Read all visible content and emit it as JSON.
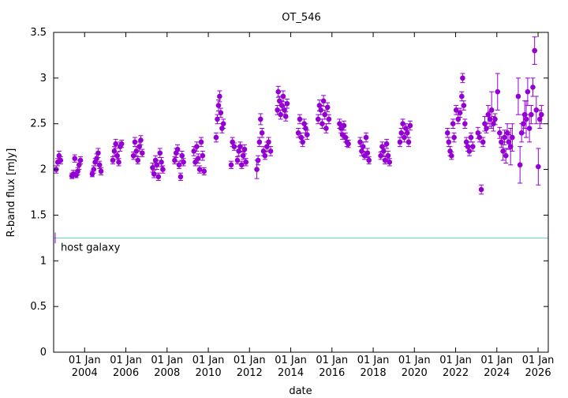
{
  "chart_data": {
    "type": "scatter",
    "title": "OT_546",
    "xlabel": "date",
    "ylabel": "R-band flux [mJy]",
    "xlim": [
      "2002-07-01",
      "2026-07-01"
    ],
    "ylim": [
      0,
      3.5
    ],
    "grid": false,
    "y_ticks": [
      {
        "value": 0,
        "label": "0"
      },
      {
        "value": 0.5,
        "label": "0.5"
      },
      {
        "value": 1,
        "label": "1"
      },
      {
        "value": 1.5,
        "label": "1.5"
      },
      {
        "value": 2,
        "label": "2"
      },
      {
        "value": 2.5,
        "label": "2.5"
      },
      {
        "value": 3,
        "label": "3"
      },
      {
        "value": 3.5,
        "label": "3.5"
      }
    ],
    "x_ticks": [
      {
        "date": "2004-01-01",
        "line1": "01 Jan",
        "line2": "2004"
      },
      {
        "date": "2006-01-01",
        "line1": "01 Jan",
        "line2": "2006"
      },
      {
        "date": "2008-01-01",
        "line1": "01 Jan",
        "line2": "2008"
      },
      {
        "date": "2010-01-01",
        "line1": "01 Jan",
        "line2": "2010"
      },
      {
        "date": "2012-01-01",
        "line1": "01 Jan",
        "line2": "2012"
      },
      {
        "date": "2014-01-01",
        "line1": "01 Jan",
        "line2": "2014"
      },
      {
        "date": "2016-01-01",
        "line1": "01 Jan",
        "line2": "2016"
      },
      {
        "date": "2018-01-01",
        "line1": "01 Jan",
        "line2": "2018"
      },
      {
        "date": "2020-01-01",
        "line1": "01 Jan",
        "line2": "2020"
      },
      {
        "date": "2022-01-01",
        "line1": "01 Jan",
        "line2": "2022"
      },
      {
        "date": "2024-01-01",
        "line1": "01 Jan",
        "line2": "2024"
      },
      {
        "date": "2026-01-01",
        "line1": "01 Jan",
        "line2": "2026"
      }
    ],
    "reference_line": {
      "label": "host galaxy",
      "value": 1.25,
      "color": "#7fcfd0",
      "error": 0.06
    },
    "series": [
      {
        "color": "#9400d3",
        "columns": [
          "date",
          "flux",
          "error"
        ],
        "points": [
          [
            "2002-08-15",
            2.0,
            0.04
          ],
          [
            "2002-09-10",
            2.08,
            0.04
          ],
          [
            "2002-10-05",
            2.15,
            0.05
          ],
          [
            "2002-11-01",
            2.1,
            0.04
          ],
          [
            "2003-05-20",
            1.93,
            0.03
          ],
          [
            "2003-06-15",
            1.95,
            0.04
          ],
          [
            "2003-07-10",
            2.12,
            0.04
          ],
          [
            "2003-08-05",
            1.94,
            0.03
          ],
          [
            "2003-09-01",
            1.98,
            0.04
          ],
          [
            "2003-09-25",
            2.05,
            0.05
          ],
          [
            "2003-10-20",
            2.1,
            0.04
          ],
          [
            "2004-05-15",
            1.95,
            0.03
          ],
          [
            "2004-06-10",
            2.0,
            0.04
          ],
          [
            "2004-07-05",
            2.08,
            0.04
          ],
          [
            "2004-08-01",
            2.12,
            0.05
          ],
          [
            "2004-08-28",
            2.18,
            0.05
          ],
          [
            "2004-09-22",
            2.05,
            0.04
          ],
          [
            "2004-10-18",
            1.98,
            0.04
          ],
          [
            "2005-05-15",
            2.1,
            0.04
          ],
          [
            "2005-06-10",
            2.2,
            0.05
          ],
          [
            "2005-07-05",
            2.28,
            0.05
          ],
          [
            "2005-08-01",
            2.15,
            0.04
          ],
          [
            "2005-08-28",
            2.08,
            0.04
          ],
          [
            "2005-09-22",
            2.25,
            0.05
          ],
          [
            "2005-10-18",
            2.28,
            0.04
          ],
          [
            "2006-05-15",
            2.15,
            0.04
          ],
          [
            "2006-06-10",
            2.3,
            0.05
          ],
          [
            "2006-07-05",
            2.2,
            0.05
          ],
          [
            "2006-08-01",
            2.1,
            0.04
          ],
          [
            "2006-08-28",
            2.25,
            0.05
          ],
          [
            "2006-09-22",
            2.32,
            0.05
          ],
          [
            "2006-10-18",
            2.18,
            0.04
          ],
          [
            "2007-04-20",
            2.02,
            0.05
          ],
          [
            "2007-05-15",
            1.95,
            0.04
          ],
          [
            "2007-06-10",
            2.1,
            0.05
          ],
          [
            "2007-07-05",
            2.05,
            0.05
          ],
          [
            "2007-08-01",
            1.92,
            0.04
          ],
          [
            "2007-08-28",
            2.18,
            0.05
          ],
          [
            "2007-09-22",
            2.08,
            0.05
          ],
          [
            "2007-10-18",
            2.0,
            0.04
          ],
          [
            "2008-05-15",
            2.1,
            0.04
          ],
          [
            "2008-06-10",
            2.18,
            0.05
          ],
          [
            "2008-07-05",
            2.22,
            0.05
          ],
          [
            "2008-08-01",
            2.05,
            0.04
          ],
          [
            "2008-08-28",
            1.92,
            0.04
          ],
          [
            "2008-09-22",
            2.15,
            0.05
          ],
          [
            "2008-10-18",
            2.08,
            0.04
          ],
          [
            "2009-04-20",
            2.2,
            0.05
          ],
          [
            "2009-05-15",
            2.08,
            0.04
          ],
          [
            "2009-06-10",
            2.25,
            0.05
          ],
          [
            "2009-07-05",
            2.12,
            0.05
          ],
          [
            "2009-08-01",
            2.0,
            0.04
          ],
          [
            "2009-08-28",
            2.3,
            0.05
          ],
          [
            "2009-09-22",
            2.15,
            0.05
          ],
          [
            "2009-10-18",
            1.98,
            0.04
          ],
          [
            "2010-05-20",
            2.35,
            0.05
          ],
          [
            "2010-06-10",
            2.55,
            0.05
          ],
          [
            "2010-07-01",
            2.7,
            0.06
          ],
          [
            "2010-07-20",
            2.8,
            0.06
          ],
          [
            "2010-08-10",
            2.62,
            0.05
          ],
          [
            "2010-09-01",
            2.45,
            0.05
          ],
          [
            "2010-09-25",
            2.5,
            0.05
          ],
          [
            "2011-02-10",
            2.05,
            0.04
          ],
          [
            "2011-03-05",
            2.3,
            0.05
          ],
          [
            "2011-04-05",
            2.25,
            0.04
          ],
          [
            "2011-06-01",
            2.1,
            0.04
          ],
          [
            "2011-06-25",
            2.2,
            0.05
          ],
          [
            "2011-07-20",
            2.25,
            0.05
          ],
          [
            "2011-08-15",
            2.05,
            0.04
          ],
          [
            "2011-09-10",
            2.15,
            0.04
          ],
          [
            "2011-10-05",
            2.22,
            0.05
          ],
          [
            "2011-10-30",
            2.08,
            0.04
          ],
          [
            "2012-05-10",
            2.0,
            0.1
          ],
          [
            "2012-06-01",
            2.1,
            0.05
          ],
          [
            "2012-06-25",
            2.3,
            0.05
          ],
          [
            "2012-07-15",
            2.55,
            0.06
          ],
          [
            "2012-08-10",
            2.4,
            0.05
          ],
          [
            "2012-09-05",
            2.2,
            0.05
          ],
          [
            "2012-10-01",
            2.15,
            0.04
          ],
          [
            "2012-11-05",
            2.25,
            0.05
          ],
          [
            "2012-12-05",
            2.3,
            0.05
          ],
          [
            "2013-01-10",
            2.2,
            0.05
          ],
          [
            "2013-05-10",
            2.65,
            0.05
          ],
          [
            "2013-05-25",
            2.85,
            0.06
          ],
          [
            "2013-06-15",
            2.75,
            0.05
          ],
          [
            "2013-07-05",
            2.6,
            0.05
          ],
          [
            "2013-07-28",
            2.7,
            0.05
          ],
          [
            "2013-08-20",
            2.8,
            0.06
          ],
          [
            "2013-09-12",
            2.65,
            0.05
          ],
          [
            "2013-10-05",
            2.58,
            0.05
          ],
          [
            "2013-10-28",
            2.72,
            0.05
          ],
          [
            "2014-05-15",
            2.4,
            0.05
          ],
          [
            "2014-06-10",
            2.55,
            0.05
          ],
          [
            "2014-07-05",
            2.35,
            0.05
          ],
          [
            "2014-08-01",
            2.3,
            0.05
          ],
          [
            "2014-08-28",
            2.5,
            0.05
          ],
          [
            "2014-09-22",
            2.45,
            0.05
          ],
          [
            "2014-10-18",
            2.38,
            0.05
          ],
          [
            "2015-05-01",
            2.55,
            0.05
          ],
          [
            "2015-05-25",
            2.7,
            0.06
          ],
          [
            "2015-06-18",
            2.65,
            0.05
          ],
          [
            "2015-07-12",
            2.5,
            0.05
          ],
          [
            "2015-08-05",
            2.75,
            0.06
          ],
          [
            "2015-08-28",
            2.6,
            0.05
          ],
          [
            "2015-09-20",
            2.45,
            0.05
          ],
          [
            "2015-10-15",
            2.68,
            0.05
          ],
          [
            "2015-11-08",
            2.55,
            0.05
          ],
          [
            "2016-05-15",
            2.5,
            0.05
          ],
          [
            "2016-06-10",
            2.45,
            0.05
          ],
          [
            "2016-07-05",
            2.38,
            0.05
          ],
          [
            "2016-08-01",
            2.48,
            0.05
          ],
          [
            "2016-08-28",
            2.35,
            0.05
          ],
          [
            "2016-09-22",
            2.3,
            0.05
          ],
          [
            "2016-10-18",
            2.28,
            0.04
          ],
          [
            "2017-05-15",
            2.3,
            0.05
          ],
          [
            "2017-06-10",
            2.2,
            0.05
          ],
          [
            "2017-07-05",
            2.25,
            0.05
          ],
          [
            "2017-08-01",
            2.15,
            0.04
          ],
          [
            "2017-08-28",
            2.35,
            0.05
          ],
          [
            "2017-09-22",
            2.18,
            0.05
          ],
          [
            "2017-10-18",
            2.1,
            0.04
          ],
          [
            "2018-05-15",
            2.15,
            0.04
          ],
          [
            "2018-06-10",
            2.25,
            0.05
          ],
          [
            "2018-07-05",
            2.2,
            0.05
          ],
          [
            "2018-08-01",
            2.1,
            0.04
          ],
          [
            "2018-08-28",
            2.28,
            0.05
          ],
          [
            "2018-09-22",
            2.15,
            0.05
          ],
          [
            "2018-10-18",
            2.08,
            0.04
          ],
          [
            "2019-04-20",
            2.3,
            0.05
          ],
          [
            "2019-05-15",
            2.4,
            0.05
          ],
          [
            "2019-06-10",
            2.5,
            0.05
          ],
          [
            "2019-07-05",
            2.35,
            0.05
          ],
          [
            "2019-08-01",
            2.45,
            0.05
          ],
          [
            "2019-08-28",
            2.4,
            0.05
          ],
          [
            "2019-09-22",
            2.3,
            0.05
          ],
          [
            "2019-10-18",
            2.48,
            0.05
          ],
          [
            "2021-08-10",
            2.4,
            0.05
          ],
          [
            "2021-09-01",
            2.3,
            0.05
          ],
          [
            "2021-09-25",
            2.2,
            0.05
          ],
          [
            "2021-10-20",
            2.15,
            0.04
          ],
          [
            "2021-11-15",
            2.5,
            0.05
          ],
          [
            "2021-12-05",
            2.35,
            0.05
          ],
          [
            "2022-01-10",
            2.65,
            0.05
          ],
          [
            "2022-02-15",
            2.55,
            0.05
          ],
          [
            "2022-03-20",
            2.62,
            0.05
          ],
          [
            "2022-04-20",
            2.8,
            0.05
          ],
          [
            "2022-05-05",
            3.0,
            0.05
          ],
          [
            "2022-05-25",
            2.7,
            0.05
          ],
          [
            "2022-06-15",
            2.5,
            0.05
          ],
          [
            "2022-07-10",
            2.3,
            0.05
          ],
          [
            "2022-08-05",
            2.25,
            0.05
          ],
          [
            "2022-09-01",
            2.2,
            0.05
          ],
          [
            "2022-10-01",
            2.35,
            0.05
          ],
          [
            "2022-11-01",
            2.25,
            0.05
          ],
          [
            "2023-02-01",
            2.4,
            0.06
          ],
          [
            "2023-03-01",
            2.35,
            0.05
          ],
          [
            "2023-04-01",
            1.78,
            0.05
          ],
          [
            "2023-05-01",
            2.3,
            0.05
          ],
          [
            "2023-06-01",
            2.5,
            0.08
          ],
          [
            "2023-07-01",
            2.45,
            0.05
          ],
          [
            "2023-08-01",
            2.6,
            0.1
          ],
          [
            "2023-09-01",
            2.55,
            0.08
          ],
          [
            "2023-10-01",
            2.65,
            0.2
          ],
          [
            "2023-11-01",
            2.5,
            0.08
          ],
          [
            "2023-12-01",
            2.55,
            0.06
          ],
          [
            "2024-01-15",
            2.85,
            0.2
          ],
          [
            "2024-02-20",
            2.4,
            0.06
          ],
          [
            "2024-03-20",
            2.3,
            0.06
          ],
          [
            "2024-04-20",
            2.2,
            0.1
          ],
          [
            "2024-05-15",
            2.35,
            0.08
          ],
          [
            "2024-06-10",
            2.15,
            0.08
          ],
          [
            "2024-07-05",
            2.4,
            0.1
          ],
          [
            "2024-08-01",
            2.3,
            0.08
          ],
          [
            "2024-09-01",
            2.25,
            0.2
          ],
          [
            "2024-10-01",
            2.35,
            0.15
          ],
          [
            "2025-01-15",
            2.8,
            0.2
          ],
          [
            "2025-02-15",
            2.05,
            0.2
          ],
          [
            "2025-03-15",
            2.4,
            0.1
          ],
          [
            "2025-04-15",
            2.5,
            0.1
          ],
          [
            "2025-05-10",
            2.6,
            0.15
          ],
          [
            "2025-06-05",
            2.55,
            0.2
          ],
          [
            "2025-07-01",
            2.85,
            0.15
          ],
          [
            "2025-08-01",
            2.45,
            0.15
          ],
          [
            "2025-09-01",
            2.6,
            0.1
          ],
          [
            "2025-10-01",
            2.9,
            0.1
          ],
          [
            "2025-11-01",
            3.3,
            0.15
          ],
          [
            "2025-12-01",
            2.65,
            0.15
          ],
          [
            "2026-01-05",
            2.03,
            0.2
          ],
          [
            "2026-02-01",
            2.55,
            0.1
          ],
          [
            "2026-03-01",
            2.6,
            0.1
          ]
        ]
      }
    ]
  }
}
